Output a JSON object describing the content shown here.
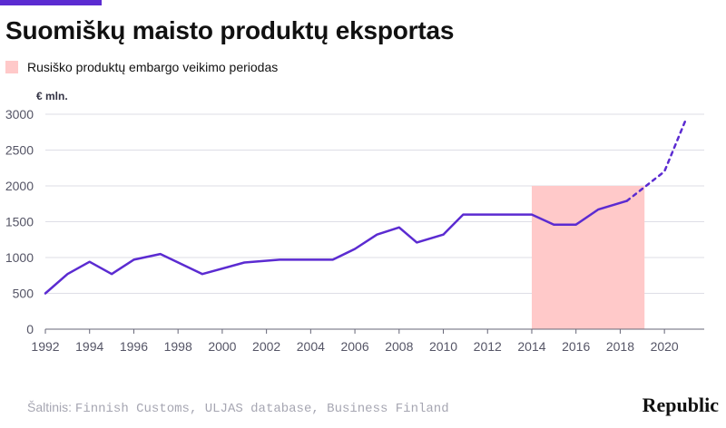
{
  "title": "Suomiškų maisto produktų eksportas",
  "legend": {
    "label": "Rusiško produktų embargo veikimo periodas",
    "color": "#ffc9c9"
  },
  "source": {
    "prefix": "Šaltinis:",
    "text": "Finnish Customs, ULJAS database, Business Finland"
  },
  "brand": "Republic",
  "colors": {
    "accent": "#5b2bd1",
    "line": "#5b2bd1",
    "embargo": "#ffc9c9",
    "grid": "#dedee6",
    "tick": "#555566"
  },
  "chart_data": {
    "type": "line",
    "ylabel": "€ mln.",
    "xlabel": "",
    "xlim": [
      1992,
      2021.8
    ],
    "ylim": [
      0,
      3000
    ],
    "x_ticks": [
      1992,
      1994,
      1996,
      1998,
      2000,
      2002,
      2004,
      2006,
      2008,
      2010,
      2012,
      2014,
      2016,
      2018,
      2020
    ],
    "y_ticks": [
      0,
      500,
      1000,
      1500,
      2000,
      2500,
      3000
    ],
    "grid": true,
    "legend_position": "top-left",
    "embargo_period": {
      "label": "Rusiško produktų embargo veikimo periodas",
      "x": [
        2014,
        2019.1
      ],
      "y": 2000
    },
    "series": [
      {
        "style": "solid",
        "points": [
          [
            1992,
            500
          ],
          [
            1993,
            770
          ],
          [
            1994,
            940
          ],
          [
            1995,
            770
          ],
          [
            1996,
            970
          ],
          [
            1997.2,
            1050
          ],
          [
            1999.1,
            770
          ],
          [
            2001,
            930
          ],
          [
            2002.6,
            970
          ],
          [
            2005,
            970
          ],
          [
            2006,
            1120
          ],
          [
            2007,
            1320
          ],
          [
            2008,
            1420
          ],
          [
            2008.8,
            1210
          ],
          [
            2010,
            1320
          ],
          [
            2010.9,
            1600
          ],
          [
            2014,
            1600
          ],
          [
            2015,
            1460
          ],
          [
            2016,
            1460
          ],
          [
            2017,
            1670
          ],
          [
            2018.3,
            1790
          ]
        ]
      },
      {
        "style": "dashed",
        "points": [
          [
            2018.3,
            1790
          ],
          [
            2020,
            2200
          ],
          [
            2021,
            2950
          ]
        ]
      }
    ]
  }
}
